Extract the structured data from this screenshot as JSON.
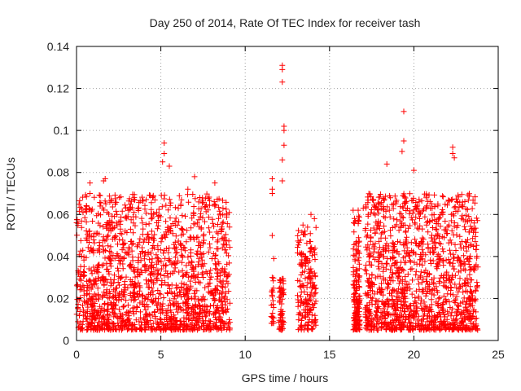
{
  "chart_data": {
    "type": "scatter",
    "title": "Day 250 of 2014, Rate Of TEC Index for receiver tash",
    "xlabel": "GPS time / hours",
    "ylabel": "ROTI / TECUs",
    "xlim": [
      0,
      25
    ],
    "ylim": [
      0,
      0.14
    ],
    "xticks": [
      0,
      5,
      10,
      15,
      20,
      25
    ],
    "yticks": [
      0,
      0.02,
      0.04,
      0.06,
      0.08,
      0.1,
      0.12,
      0.14
    ],
    "xtick_labels": [
      "0",
      "5",
      "10",
      "15",
      "20",
      "25"
    ],
    "ytick_labels": [
      "0",
      "0.02",
      "0.04",
      "0.06",
      "0.08",
      "0.1",
      "0.12",
      "0.14"
    ],
    "grid": true,
    "marker": "+",
    "color": "#ff0000",
    "dense_clusters": [
      {
        "x_range": [
          0.0,
          9.1
        ],
        "y_range": [
          0.005,
          0.07
        ],
        "density": 1600
      },
      {
        "x_range": [
          17.1,
          23.8
        ],
        "y_range": [
          0.005,
          0.07
        ],
        "density": 1300
      },
      {
        "x_range": [
          16.4,
          16.8
        ],
        "y_range": [
          0.005,
          0.06
        ],
        "density": 160
      },
      {
        "x_range": [
          13.1,
          14.2
        ],
        "y_range": [
          0.005,
          0.055
        ],
        "density": 180
      },
      {
        "x_range": [
          12.0,
          12.3
        ],
        "y_range": [
          0.005,
          0.03
        ],
        "density": 60
      },
      {
        "x_range": [
          11.5,
          11.7
        ],
        "y_range": [
          0.008,
          0.03
        ],
        "density": 20
      }
    ],
    "series": [
      {
        "name": "ROTI",
        "points": [
          [
            12.2,
            0.131
          ],
          [
            12.2,
            0.129
          ],
          [
            12.2,
            0.123
          ],
          [
            12.3,
            0.102
          ],
          [
            12.3,
            0.1
          ],
          [
            12.3,
            0.093
          ],
          [
            12.2,
            0.086
          ],
          [
            12.2,
            0.076
          ],
          [
            11.6,
            0.077
          ],
          [
            11.6,
            0.072
          ],
          [
            11.6,
            0.07
          ],
          [
            11.6,
            0.05
          ],
          [
            11.7,
            0.039
          ],
          [
            11.6,
            0.03
          ],
          [
            11.6,
            0.024
          ],
          [
            19.4,
            0.109
          ],
          [
            19.4,
            0.095
          ],
          [
            19.3,
            0.09
          ],
          [
            22.3,
            0.092
          ],
          [
            22.3,
            0.089
          ],
          [
            22.4,
            0.087
          ],
          [
            5.2,
            0.094
          ],
          [
            5.2,
            0.089
          ],
          [
            5.1,
            0.085
          ],
          [
            5.5,
            0.083
          ],
          [
            1.7,
            0.077
          ],
          [
            1.6,
            0.076
          ],
          [
            0.8,
            0.075
          ],
          [
            0.8,
            0.07
          ],
          [
            13.9,
            0.06
          ],
          [
            14.1,
            0.058
          ],
          [
            13.3,
            0.041
          ],
          [
            16.4,
            0.062
          ],
          [
            16.7,
            0.062
          ],
          [
            17.0,
            0.063
          ],
          [
            18.4,
            0.084
          ],
          [
            20.0,
            0.081
          ],
          [
            7.0,
            0.078
          ],
          [
            6.6,
            0.072
          ],
          [
            8.2,
            0.075
          ]
        ]
      }
    ]
  }
}
